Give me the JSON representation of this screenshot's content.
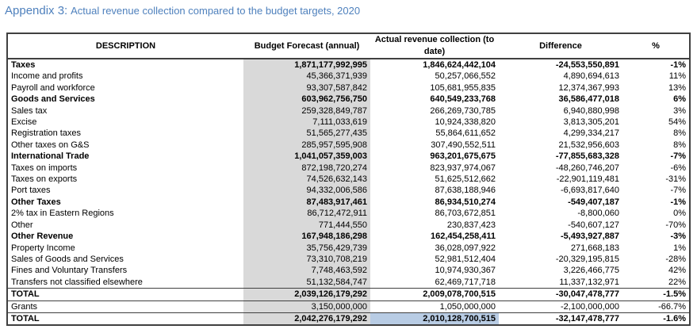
{
  "heading": {
    "appendix": "Appendix 3:",
    "title": "Actual revenue collection compared to the budget targets, 2020"
  },
  "columns": {
    "description": "DESCRIPTION",
    "budget": "Budget Forecast (annual)",
    "actual": "Actual revenue collection (to date)",
    "difference": "Difference",
    "percent": "%"
  },
  "rows": [
    {
      "desc": "Taxes",
      "budget": "1,871,177,992,995",
      "actual": "1,846,624,442,104",
      "diff": "-24,553,550,891",
      "pct": "-1%",
      "level": 0,
      "bold": true
    },
    {
      "desc": "Income and profits",
      "budget": "45,366,371,939",
      "actual": "50,257,066,552",
      "diff": "4,890,694,613",
      "pct": "11%",
      "level": 1,
      "bold": false
    },
    {
      "desc": "Payroll and workforce",
      "budget": "93,307,587,842",
      "actual": "105,681,955,835",
      "diff": "12,374,367,993",
      "pct": "13%",
      "level": 1,
      "bold": false
    },
    {
      "desc": "Goods and Services",
      "budget": "603,962,756,750",
      "actual": "640,549,233,768",
      "diff": "36,586,477,018",
      "pct": "6%",
      "level": 1,
      "bold": true
    },
    {
      "desc": "Sales tax",
      "budget": "259,328,849,787",
      "actual": "266,269,730,785",
      "diff": "6,940,880,998",
      "pct": "3%",
      "level": 2,
      "bold": false
    },
    {
      "desc": "Excise",
      "budget": "7,111,033,619",
      "actual": "10,924,338,820",
      "diff": "3,813,305,201",
      "pct": "54%",
      "level": 2,
      "bold": false
    },
    {
      "desc": "Registration taxes",
      "budget": "51,565,277,435",
      "actual": "55,864,611,652",
      "diff": "4,299,334,217",
      "pct": "8%",
      "level": 2,
      "bold": false
    },
    {
      "desc": "Other taxes on G&S",
      "budget": "285,957,595,908",
      "actual": "307,490,552,511",
      "diff": "21,532,956,603",
      "pct": "8%",
      "level": 2,
      "bold": false
    },
    {
      "desc": "International Trade",
      "budget": "1,041,057,359,003",
      "actual": "963,201,675,675",
      "diff": "-77,855,683,328",
      "pct": "-7%",
      "level": 1,
      "bold": true
    },
    {
      "desc": "Taxes on imports",
      "budget": "872,198,720,274",
      "actual": "823,937,974,067",
      "diff": "-48,260,746,207",
      "pct": "-6%",
      "level": 2,
      "bold": false
    },
    {
      "desc": "Taxes on exports",
      "budget": "74,526,632,143",
      "actual": "51,625,512,662",
      "diff": "-22,901,119,481",
      "pct": "-31%",
      "level": 2,
      "bold": false
    },
    {
      "desc": "Port taxes",
      "budget": "94,332,006,586",
      "actual": "87,638,188,946",
      "diff": "-6,693,817,640",
      "pct": "-7%",
      "level": 2,
      "bold": false
    },
    {
      "desc": "Other Taxes",
      "budget": "87,483,917,461",
      "actual": "86,934,510,274",
      "diff": "-549,407,187",
      "pct": "-1%",
      "level": 1,
      "bold": true
    },
    {
      "desc": "2% tax in Eastern Regions",
      "budget": "86,712,472,911",
      "actual": "86,703,672,851",
      "diff": "-8,800,060",
      "pct": "0%",
      "level": 2,
      "bold": false
    },
    {
      "desc": "Other",
      "budget": "771,444,550",
      "actual": "230,837,423",
      "diff": "-540,607,127",
      "pct": "-70%",
      "level": 2,
      "bold": false
    },
    {
      "desc": "Other Revenue",
      "budget": "167,948,186,298",
      "actual": "162,454,258,411",
      "diff": "-5,493,927,887",
      "pct": "-3%",
      "level": 0,
      "bold": true
    },
    {
      "desc": "Property Income",
      "budget": "35,756,429,739",
      "actual": "36,028,097,922",
      "diff": "271,668,183",
      "pct": "1%",
      "level": 1,
      "bold": false
    },
    {
      "desc": "Sales of Goods and Services",
      "budget": "73,310,708,219",
      "actual": "52,981,512,404",
      "diff": "-20,329,195,815",
      "pct": "-28%",
      "level": 1,
      "bold": false
    },
    {
      "desc": "Fines and Voluntary Transfers",
      "budget": "7,748,463,592",
      "actual": "10,974,930,367",
      "diff": "3,226,466,775",
      "pct": "42%",
      "level": 1,
      "bold": false
    },
    {
      "desc": "Transfers not classified elsewhere",
      "budget": "51,132,584,747",
      "actual": "62,469,717,718",
      "diff": "11,337,132,971",
      "pct": "22%",
      "level": 1,
      "bold": false
    },
    {
      "desc": "TOTAL",
      "budget": "2,039,126,179,292",
      "actual": "2,009,078,700,515",
      "diff": "-30,047,478,777",
      "pct": "-1.5%",
      "level": 0,
      "bold": true
    },
    {
      "desc": "Grants",
      "budget": "3,150,000,000",
      "actual": "1,050,000,000",
      "diff": "-2,100,000,000",
      "pct": "-66.7%",
      "level": 0,
      "bold": false
    },
    {
      "desc": "TOTAL",
      "budget": "2,042,276,179,292",
      "actual": "2,010,128,700,515",
      "diff": "-32,147,478,777",
      "pct": "-1.6%",
      "level": 0,
      "bold": true
    }
  ]
}
